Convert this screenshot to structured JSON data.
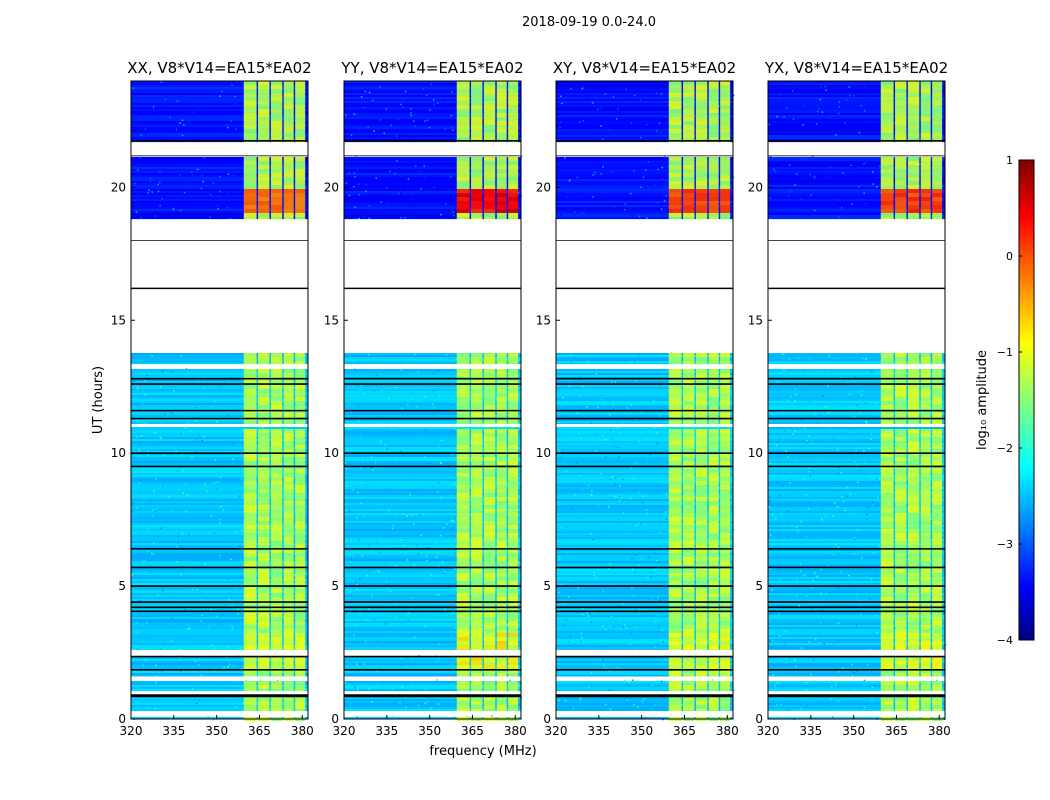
{
  "chart_data": {
    "type": "heatmap",
    "suptitle": "2018-09-19 0.0-24.0",
    "xlabel": "frequency (MHz)",
    "ylabel": "UT (hours)",
    "xlim": [
      320,
      382
    ],
    "ylim": [
      0,
      24
    ],
    "xticks": [
      320,
      335,
      350,
      365,
      380
    ],
    "yticks": [
      0,
      5,
      10,
      15,
      20
    ],
    "panels": [
      {
        "title": "XX, V8*V14=EA15*EA02",
        "rfi_strength": 0.55
      },
      {
        "title": "YY, V8*V14=EA15*EA02",
        "rfi_strength": 1.0
      },
      {
        "title": "XY, V8*V14=EA15*EA02",
        "rfi_strength": 0.75
      },
      {
        "title": "YX, V8*V14=EA15*EA02",
        "rfi_strength": 0.75
      }
    ],
    "rfi_channels_mhz": [
      [
        359.5,
        364
      ],
      [
        364.5,
        368.5
      ],
      [
        369,
        373
      ],
      [
        373.5,
        377
      ],
      [
        377.5,
        381
      ]
    ],
    "blank_ut_ranges": [
      [
        0.15,
        0.3
      ],
      [
        0.95,
        1.05
      ],
      [
        1.5,
        1.6
      ],
      [
        2.4,
        2.6
      ],
      [
        11.0,
        11.1
      ],
      [
        13.2,
        13.35
      ],
      [
        13.8,
        16.2
      ],
      [
        16.2,
        18.8
      ],
      [
        21.2,
        21.7
      ]
    ],
    "black_lines_ut": [
      0.85,
      0.9,
      1.85,
      2.35,
      4.05,
      4.2,
      4.4,
      5.0,
      5.7,
      6.4,
      9.5,
      10.0,
      11.3,
      11.6,
      12.6,
      12.8,
      16.2,
      21.2,
      21.35,
      21.6,
      21.75
    ],
    "colorbar": {
      "label": "log₁₀ amplitude",
      "min": -4,
      "max": 1,
      "ticks": [
        -4,
        -3,
        -2,
        -1,
        0,
        1
      ],
      "tick_labels": [
        "−4",
        "−3",
        "−2",
        "−1",
        "0",
        "1"
      ],
      "colormap": "jet"
    }
  }
}
